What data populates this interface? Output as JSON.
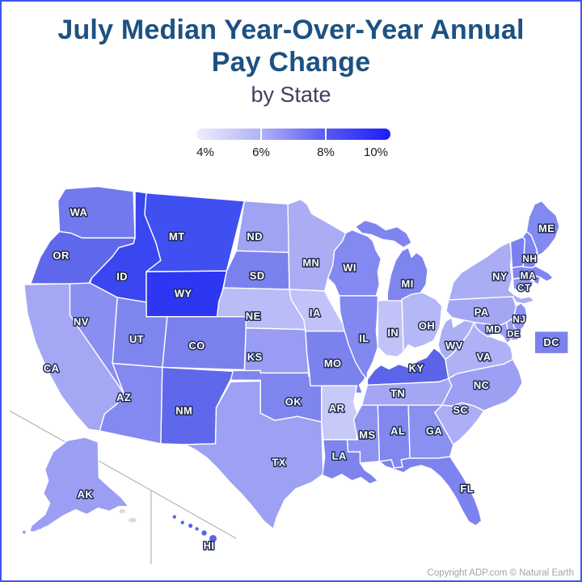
{
  "title": {
    "line1": "July Median Year-Over-Year Annual",
    "line2": "Pay Change",
    "subtitle": "by State"
  },
  "legend": {
    "ticks": [
      "4%",
      "6%",
      "8%",
      "10%"
    ]
  },
  "attribution": "Copyright ADP.com © Natural Earth",
  "colors": {
    "title": "#1d5181",
    "subtitle": "#3f3f5f",
    "frame_border": "#3e55ef",
    "state_border": "#ffffff",
    "label_fill": "#ffffff",
    "label_outline": "#1f2a4d",
    "inset_line": "#b5b5b5",
    "island_gray": "#dcdcdc",
    "attribution_text": "#a3a3a3",
    "tick_text": "#1a1a1a"
  },
  "chart_data": {
    "type": "choropleth",
    "title": "July Median Year-Over-Year Annual Pay Change by State",
    "unit": "percent",
    "legend_scale": {
      "min": 4,
      "max": 10,
      "tick_labels": [
        "4%",
        "6%",
        "8%",
        "10%"
      ]
    },
    "states": [
      {
        "abbr": "WA",
        "fill": "#7279ed",
        "value_pct_est": 7.5,
        "labeled": true
      },
      {
        "abbr": "OR",
        "fill": "#5f68ea",
        "value_pct_est": 8.0,
        "labeled": true
      },
      {
        "abbr": "CA",
        "fill": "#a3a7f4",
        "value_pct_est": 6.1,
        "labeled": true
      },
      {
        "abbr": "NV",
        "fill": "#898ff0",
        "value_pct_est": 6.8,
        "labeled": true
      },
      {
        "abbr": "ID",
        "fill": "#3a47f0",
        "value_pct_est": 9.1,
        "labeled": true
      },
      {
        "abbr": "MT",
        "fill": "#4050f0",
        "value_pct_est": 8.9,
        "labeled": true
      },
      {
        "abbr": "WY",
        "fill": "#2e36f2",
        "value_pct_est": 9.5,
        "labeled": true
      },
      {
        "abbr": "UT",
        "fill": "#7e85ee",
        "value_pct_est": 7.1,
        "labeled": true
      },
      {
        "abbr": "CO",
        "fill": "#7a81ee",
        "value_pct_est": 7.3,
        "labeled": true
      },
      {
        "abbr": "AZ",
        "fill": "#8389f0",
        "value_pct_est": 7.0,
        "labeled": true
      },
      {
        "abbr": "NM",
        "fill": "#5f68eb",
        "value_pct_est": 8.0,
        "labeled": true
      },
      {
        "abbr": "ND",
        "fill": "#9fa3f3",
        "value_pct_est": 6.2,
        "labeled": true
      },
      {
        "abbr": "SD",
        "fill": "#7a81ee",
        "value_pct_est": 7.3,
        "labeled": true
      },
      {
        "abbr": "NE",
        "fill": "#b9bcf7",
        "value_pct_est": 5.5,
        "labeled": true
      },
      {
        "abbr": "KS",
        "fill": "#989cf2",
        "value_pct_est": 6.4,
        "labeled": true
      },
      {
        "abbr": "OK",
        "fill": "#7e85ee",
        "value_pct_est": 7.1,
        "labeled": true
      },
      {
        "abbr": "TX",
        "fill": "#9da1f3",
        "value_pct_est": 6.3,
        "labeled": true
      },
      {
        "abbr": "MN",
        "fill": "#aaadf4",
        "value_pct_est": 5.9,
        "labeled": true
      },
      {
        "abbr": "IA",
        "fill": "#c1c2f8",
        "value_pct_est": 5.2,
        "labeled": true
      },
      {
        "abbr": "MO",
        "fill": "#7b82ee",
        "value_pct_est": 7.3,
        "labeled": true
      },
      {
        "abbr": "AR",
        "fill": "#c7c9f9",
        "value_pct_est": 5.1,
        "labeled": true
      },
      {
        "abbr": "LA",
        "fill": "#7d84ee",
        "value_pct_est": 7.2,
        "labeled": true
      },
      {
        "abbr": "WI",
        "fill": "#8389f0",
        "value_pct_est": 7.0,
        "labeled": true
      },
      {
        "abbr": "IL",
        "fill": "#8288ef",
        "value_pct_est": 7.0,
        "labeled": true
      },
      {
        "abbr": "IN",
        "fill": "#c1c3f8",
        "value_pct_est": 5.2,
        "labeled": true
      },
      {
        "abbr": "MI",
        "fill": "#7e85ee",
        "value_pct_est": 7.1,
        "labeled": true
      },
      {
        "abbr": "OH",
        "fill": "#b5b8f6",
        "value_pct_est": 5.6,
        "labeled": true
      },
      {
        "abbr": "KY",
        "fill": "#5c64ea",
        "value_pct_est": 8.1,
        "labeled": true
      },
      {
        "abbr": "TN",
        "fill": "#a3a7f3",
        "value_pct_est": 6.1,
        "labeled": true
      },
      {
        "abbr": "MS",
        "fill": "#8d92f1",
        "value_pct_est": 6.7,
        "labeled": true
      },
      {
        "abbr": "AL",
        "fill": "#8187ef",
        "value_pct_est": 7.1,
        "labeled": true
      },
      {
        "abbr": "GA",
        "fill": "#8990f0",
        "value_pct_est": 6.8,
        "labeled": true
      },
      {
        "abbr": "FL",
        "fill": "#7c83ee",
        "value_pct_est": 7.2,
        "labeled": true
      },
      {
        "abbr": "SC",
        "fill": "#abaef4",
        "value_pct_est": 5.9,
        "labeled": true
      },
      {
        "abbr": "NC",
        "fill": "#9ba0f3",
        "value_pct_est": 6.3,
        "labeled": true
      },
      {
        "abbr": "VA",
        "fill": "#aeb2f5",
        "value_pct_est": 5.8,
        "labeled": true
      },
      {
        "abbr": "WV",
        "fill": "#abaff4",
        "value_pct_est": 5.9,
        "labeled": true
      },
      {
        "abbr": "MD",
        "fill": "#9ba0f2",
        "value_pct_est": 6.3,
        "labeled": true
      },
      {
        "abbr": "DE",
        "fill": "#9a9ff2",
        "value_pct_est": 6.3,
        "labeled": true
      },
      {
        "abbr": "DC",
        "fill": "#7b82ee",
        "value_pct_est": 7.3,
        "labeled": true
      },
      {
        "abbr": "NJ",
        "fill": "#9094f1",
        "value_pct_est": 6.6,
        "labeled": true
      },
      {
        "abbr": "PA",
        "fill": "#a3a7f3",
        "value_pct_est": 6.1,
        "labeled": true
      },
      {
        "abbr": "NY",
        "fill": "#a9adf4",
        "value_pct_est": 5.9,
        "labeled": true
      },
      {
        "abbr": "CT",
        "fill": "#9094f1",
        "value_pct_est": 6.6,
        "labeled": true
      },
      {
        "abbr": "RI",
        "fill": "#8085ef",
        "value_pct_est": 7.1,
        "labeled": false
      },
      {
        "abbr": "MA",
        "fill": "#8085ef",
        "value_pct_est": 7.1,
        "labeled": true
      },
      {
        "abbr": "VT",
        "fill": "#7a81ee",
        "value_pct_est": 7.3,
        "labeled": false
      },
      {
        "abbr": "NH",
        "fill": "#7e85ee",
        "value_pct_est": 7.1,
        "labeled": true
      },
      {
        "abbr": "ME",
        "fill": "#8289ef",
        "value_pct_est": 7.0,
        "labeled": true
      },
      {
        "abbr": "AK",
        "fill": "#9b9ef3",
        "value_pct_est": 6.3,
        "labeled": true
      },
      {
        "abbr": "HI",
        "fill": "#5a63ea",
        "value_pct_est": 8.2,
        "labeled": true
      }
    ]
  }
}
